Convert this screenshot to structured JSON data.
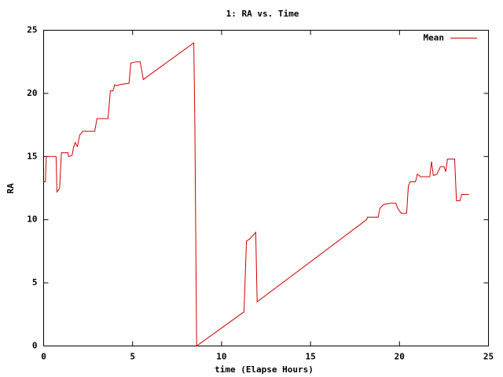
{
  "chart_data": {
    "type": "line",
    "title": "1: RA vs. Time",
    "x_label": "time (Elapse Hours)",
    "y_label": "RA",
    "x": [
      0,
      0.1,
      0.15,
      0.7,
      0.75,
      0.9,
      1.0,
      1.37,
      1.4,
      1.6,
      1.68,
      1.77,
      1.9,
      2.03,
      2.2,
      2.87,
      3.0,
      3.62,
      3.75,
      3.9,
      4.0,
      4.1,
      4.3,
      4.8,
      4.9,
      5.2,
      5.43,
      5.6,
      8.44,
      8.5,
      8.6,
      11.26,
      11.4,
      11.6,
      11.92,
      12.0,
      18.15,
      18.2,
      18.8,
      18.9,
      19.1,
      19.5,
      19.8,
      19.9,
      20.1,
      20.4,
      20.5,
      20.6,
      20.9,
      21.0,
      21.2,
      21.7,
      21.8,
      21.9,
      22.1,
      22.3,
      22.5,
      22.6,
      22.7,
      23.1,
      23.2,
      23.4,
      23.5,
      23.9
    ],
    "series": [
      {
        "name": "Mean",
        "color": "#d00000",
        "values": [
          13,
          13,
          15,
          15,
          12.2,
          12.5,
          15.3,
          15.3,
          15,
          15.1,
          15.7,
          16.1,
          15.8,
          16.7,
          17,
          17,
          18,
          18,
          20.2,
          20.2,
          20.7,
          20.6,
          20.7,
          20.8,
          22.4,
          22.5,
          22.5,
          21.1,
          24,
          17.5,
          0,
          2.7,
          8.3,
          8.5,
          9,
          3.5,
          10,
          10.2,
          10.2,
          10.9,
          11.2,
          11.3,
          11.3,
          10.9,
          10.5,
          10.5,
          12.7,
          13,
          13,
          13.6,
          13.4,
          13.4,
          14.6,
          13.5,
          13.6,
          14.2,
          14.2,
          13.8,
          14.8,
          14.8,
          11.5,
          11.5,
          12,
          12
        ]
      }
    ],
    "xlim": [
      0,
      25
    ],
    "xticks": [
      0,
      5,
      10,
      15,
      20,
      25
    ],
    "ylim": [
      0,
      25
    ],
    "yticks": [
      0,
      5,
      10,
      15,
      20,
      25
    ],
    "grid": false,
    "legend": "top-right"
  }
}
